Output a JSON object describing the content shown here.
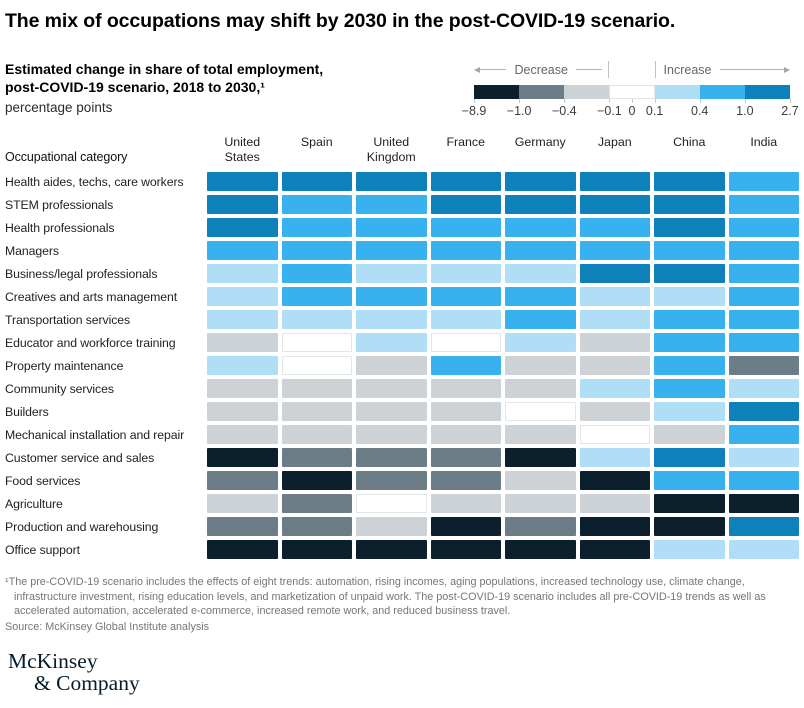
{
  "header": {
    "title": "The mix of occupations may shift by 2030 in the post-COVID-19 scenario."
  },
  "subtitle": {
    "bold": "Estimated change in share of total employment, post-COVID-19 scenario, 2018 to 2030,¹",
    "unit": "percentage points"
  },
  "legend": {
    "decrease_label": "Decrease",
    "increase_label": "Increase",
    "ticks": [
      "−8.9",
      "−1.0",
      "−0.4",
      "−0.1",
      "0",
      "0.1",
      "0.4",
      "1.0",
      "2.7"
    ]
  },
  "colors": {
    "navy": "#0b1f2d",
    "gray": "#6d7d88",
    "lightgray": "#cdd2d6",
    "white": "#ffffff",
    "lightblue": "#b1def7",
    "blue": "#38b1ef",
    "darkblue": "#0e80ba"
  },
  "table": {
    "row_header": "Occupational category"
  },
  "chart_data": {
    "type": "heatmap",
    "title": "The mix of occupations may shift by 2030 in the post-COVID-19 scenario.",
    "subtitle": "Estimated change in share of total employment, post-COVID-19 scenario, 2018 to 2030",
    "unit": "percentage points",
    "legend_ticks": [
      "−8.9",
      "−1.0",
      "−0.4",
      "−0.1",
      "0",
      "0.1",
      "0.4",
      "1.0",
      "2.7"
    ],
    "bins": [
      {
        "key": "navy",
        "label": "−8.9 to −1.0",
        "range": [
          -8.9,
          -1.0
        ],
        "color": "#0b1f2d"
      },
      {
        "key": "gray",
        "label": "−1.0 to −0.4",
        "range": [
          -1.0,
          -0.4
        ],
        "color": "#6d7d88"
      },
      {
        "key": "lightgray",
        "label": "−0.4 to −0.1",
        "range": [
          -0.4,
          -0.1
        ],
        "color": "#cdd2d6"
      },
      {
        "key": "white",
        "label": "−0.1 to 0.1",
        "range": [
          -0.1,
          0.1
        ],
        "color": "#ffffff"
      },
      {
        "key": "lightblue",
        "label": "0.1 to 0.4",
        "range": [
          0.1,
          0.4
        ],
        "color": "#b1def7"
      },
      {
        "key": "blue",
        "label": "0.4 to 1.0",
        "range": [
          0.4,
          1.0
        ],
        "color": "#38b1ef"
      },
      {
        "key": "darkblue",
        "label": "1.0 to 2.7",
        "range": [
          1.0,
          2.7
        ],
        "color": "#0e80ba"
      }
    ],
    "columns": [
      "United States",
      "Spain",
      "United Kingdom",
      "France",
      "Germany",
      "Japan",
      "China",
      "India"
    ],
    "rows": [
      "Health aides, techs, care workers",
      "STEM professionals",
      "Health professionals",
      "Managers",
      "Business/legal professionals",
      "Creatives and arts management",
      "Transportation services",
      "Educator and workforce training",
      "Property maintenance",
      "Community services",
      "Builders",
      "Mechanical installation and repair",
      "Customer service and sales",
      "Food services",
      "Agriculture",
      "Production and warehousing",
      "Office support"
    ],
    "values_bins": [
      [
        "darkblue",
        "darkblue",
        "darkblue",
        "darkblue",
        "darkblue",
        "darkblue",
        "darkblue",
        "blue"
      ],
      [
        "darkblue",
        "blue",
        "blue",
        "darkblue",
        "darkblue",
        "darkblue",
        "darkblue",
        "blue"
      ],
      [
        "darkblue",
        "blue",
        "blue",
        "blue",
        "blue",
        "blue",
        "darkblue",
        "blue"
      ],
      [
        "blue",
        "blue",
        "blue",
        "blue",
        "blue",
        "blue",
        "blue",
        "blue"
      ],
      [
        "lightblue",
        "blue",
        "lightblue",
        "lightblue",
        "lightblue",
        "darkblue",
        "darkblue",
        "blue"
      ],
      [
        "lightblue",
        "blue",
        "blue",
        "blue",
        "blue",
        "lightblue",
        "lightblue",
        "blue"
      ],
      [
        "lightblue",
        "lightblue",
        "lightblue",
        "lightblue",
        "blue",
        "lightblue",
        "blue",
        "blue"
      ],
      [
        "lightgray",
        "white",
        "lightblue",
        "white",
        "lightblue",
        "lightgray",
        "blue",
        "blue"
      ],
      [
        "lightblue",
        "white",
        "lightgray",
        "blue",
        "lightgray",
        "lightgray",
        "blue",
        "gray"
      ],
      [
        "lightgray",
        "lightgray",
        "lightgray",
        "lightgray",
        "lightgray",
        "lightblue",
        "blue",
        "lightblue"
      ],
      [
        "lightgray",
        "lightgray",
        "lightgray",
        "lightgray",
        "white",
        "lightgray",
        "lightblue",
        "darkblue"
      ],
      [
        "lightgray",
        "lightgray",
        "lightgray",
        "lightgray",
        "lightgray",
        "white",
        "lightgray",
        "blue"
      ],
      [
        "navy",
        "gray",
        "gray",
        "gray",
        "navy",
        "lightblue",
        "darkblue",
        "lightblue"
      ],
      [
        "gray",
        "navy",
        "gray",
        "gray",
        "lightgray",
        "navy",
        "blue",
        "blue"
      ],
      [
        "lightgray",
        "gray",
        "white",
        "lightgray",
        "lightgray",
        "lightgray",
        "navy",
        "navy"
      ],
      [
        "gray",
        "gray",
        "lightgray",
        "navy",
        "gray",
        "navy",
        "navy",
        "darkblue"
      ],
      [
        "navy",
        "navy",
        "navy",
        "navy",
        "navy",
        "navy",
        "lightblue",
        "lightblue"
      ]
    ]
  },
  "footnote": {
    "text": "¹The pre-COVID-19 scenario includes the effects of eight trends: automation, rising incomes, aging populations, increased technology use, climate change, infrastructure investment, rising education levels, and marketization of unpaid work. The post-COVID-19 scenario includes all pre-COVID-19 trends as well as accelerated automation, accelerated e-commerce, increased remote work, and reduced business travel.",
    "source": "Source: McKinsey Global Institute analysis"
  },
  "logo": {
    "line1": "McKinsey",
    "line2": "& Company"
  }
}
